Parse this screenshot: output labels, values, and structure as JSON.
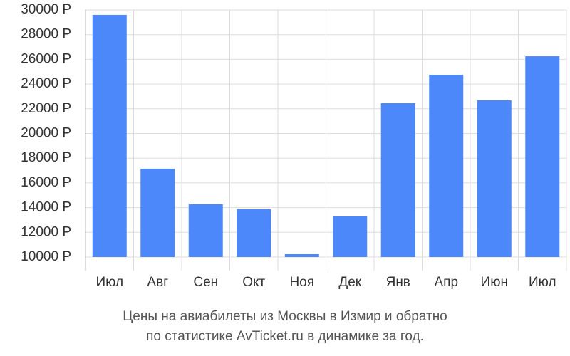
{
  "chart_data": {
    "type": "bar",
    "title_lines": [
      "Цены на авиабилеты из Москвы в Измир и обратно",
      "по статистике AvTicket.ru в динамике за год."
    ],
    "categories": [
      "Июл",
      "Авг",
      "Сен",
      "Окт",
      "Ноя",
      "Дек",
      "Янв",
      "Апр",
      "Июн",
      "Июл"
    ],
    "values": [
      29600,
      17150,
      14270,
      13860,
      10230,
      13290,
      22450,
      24750,
      22680,
      26250
    ],
    "color": "#4d88fb",
    "ylim": [
      10000,
      30000
    ],
    "yticks": [
      {
        "value": 10000,
        "label": "10000 Р"
      },
      {
        "value": 12000,
        "label": "12000 Р"
      },
      {
        "value": 14000,
        "label": "14000 Р"
      },
      {
        "value": 16000,
        "label": "16000 Р"
      },
      {
        "value": 18000,
        "label": "18000 Р"
      },
      {
        "value": 20000,
        "label": "20000 Р"
      },
      {
        "value": 22000,
        "label": "22000 Р"
      },
      {
        "value": 24000,
        "label": "24000 Р"
      },
      {
        "value": 26000,
        "label": "26000 Р"
      },
      {
        "value": 28000,
        "label": "28000 Р"
      },
      {
        "value": 30000,
        "label": "30000 Р"
      }
    ],
    "grid": true
  }
}
